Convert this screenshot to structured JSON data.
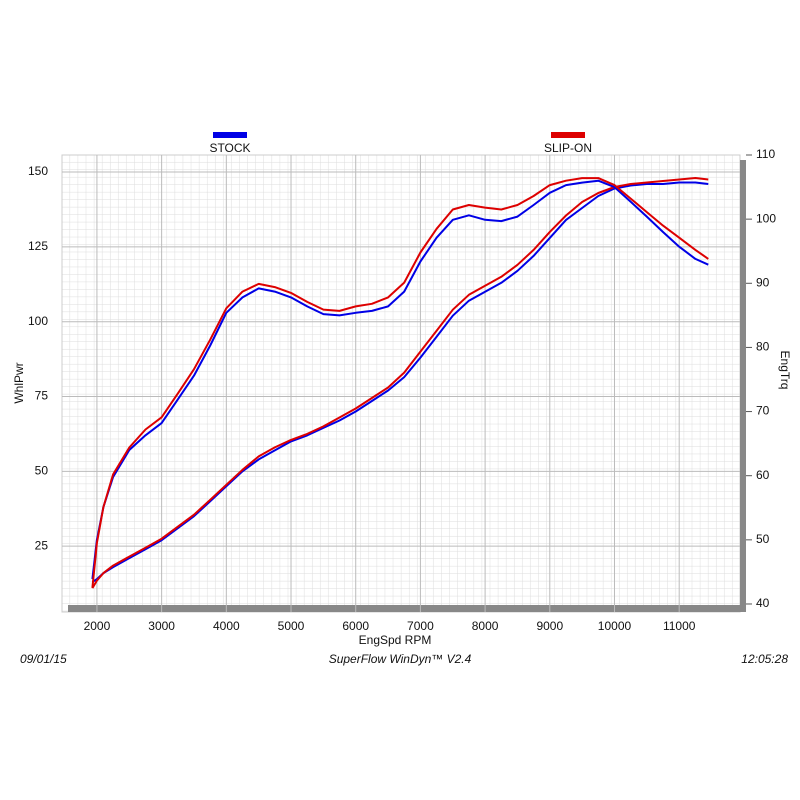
{
  "chart_data": {
    "type": "line",
    "xlabel": "EngSpd  RPM",
    "ylabel": "WhlPwr",
    "y2label": "EngTrq",
    "footer_left": "09/01/15",
    "footer_center": "SuperFlow WinDyn™ V2.4",
    "footer_right": "12:05:28",
    "x": [
      1930,
      2000,
      2100,
      2250,
      2500,
      2750,
      3000,
      3250,
      3500,
      3750,
      4000,
      4250,
      4500,
      4750,
      5000,
      5250,
      5500,
      5750,
      6000,
      6250,
      6500,
      6750,
      7000,
      7250,
      7500,
      7750,
      8000,
      8250,
      8500,
      8750,
      9000,
      9250,
      9500,
      9750,
      10000,
      10250,
      10500,
      10750,
      11000,
      11250,
      11450
    ],
    "xlim": [
      1460,
      11940
    ],
    "xticks": [
      2000,
      3000,
      4000,
      5000,
      6000,
      7000,
      8000,
      9000,
      10000,
      11000
    ],
    "ylim": [
      3,
      155.7
    ],
    "yticks": [
      25,
      50,
      75,
      100,
      125,
      150
    ],
    "y2lim": [
      38.75,
      110
    ],
    "y2ticks": [
      40,
      50,
      60,
      70,
      80,
      90,
      100,
      110
    ],
    "grid": true,
    "series": [
      {
        "name": "STOCK",
        "color": "#0000e6",
        "values": [
          13,
          14,
          16,
          18,
          21,
          24,
          27,
          31,
          35,
          40,
          45,
          50,
          54,
          57,
          60,
          62,
          64.5,
          67,
          70,
          73.5,
          77,
          81.5,
          88,
          95,
          102,
          107,
          110,
          113,
          117,
          122,
          128,
          134,
          138,
          142,
          144.5,
          145.5,
          146,
          146,
          146.5,
          146.5,
          146
        ]
      },
      {
        "name": "SLIP-ON",
        "color": "#dd0000",
        "values": [
          11,
          13.5,
          16,
          18.5,
          21.5,
          24.5,
          27.5,
          31.5,
          35.5,
          40.5,
          45.5,
          50.5,
          55,
          58,
          60.5,
          62.5,
          65,
          68,
          71,
          74.5,
          78,
          83,
          90,
          97,
          104,
          109,
          112,
          115,
          119,
          124,
          130,
          135.5,
          140,
          143,
          145,
          146,
          146.5,
          147,
          147.5,
          148,
          147.5
        ]
      },
      {
        "name": "STOCK",
        "color": "#0000e6",
        "axis": "y2",
        "values": [
          43.9,
          50.0,
          55.1,
          59.8,
          64.0,
          66.3,
          68.2,
          71.9,
          75.6,
          80.3,
          85.4,
          87.8,
          89.2,
          88.7,
          87.8,
          86.4,
          85.2,
          85.0,
          85.4,
          85.7,
          86.4,
          88.7,
          93.4,
          97.1,
          99.9,
          100.6,
          99.9,
          99.7,
          100.4,
          102.2,
          104.1,
          105.3,
          105.7,
          106.0,
          105.0,
          102.7,
          100.4,
          98.0,
          95.7,
          93.8,
          92.9
        ]
      },
      {
        "name": "SLIP-ON",
        "color": "#dd0000",
        "axis": "y2",
        "values": [
          42.5,
          49.5,
          55.1,
          60.2,
          64.4,
          67.2,
          69.1,
          72.8,
          76.6,
          81.2,
          86.1,
          88.7,
          89.9,
          89.4,
          88.5,
          87.1,
          85.9,
          85.7,
          86.4,
          86.8,
          87.8,
          90.1,
          94.8,
          98.5,
          101.5,
          102.2,
          101.8,
          101.5,
          102.2,
          103.6,
          105.3,
          106.0,
          106.4,
          106.4,
          105.3,
          103.2,
          101.1,
          99.0,
          97.1,
          95.2,
          93.8
        ]
      }
    ]
  }
}
